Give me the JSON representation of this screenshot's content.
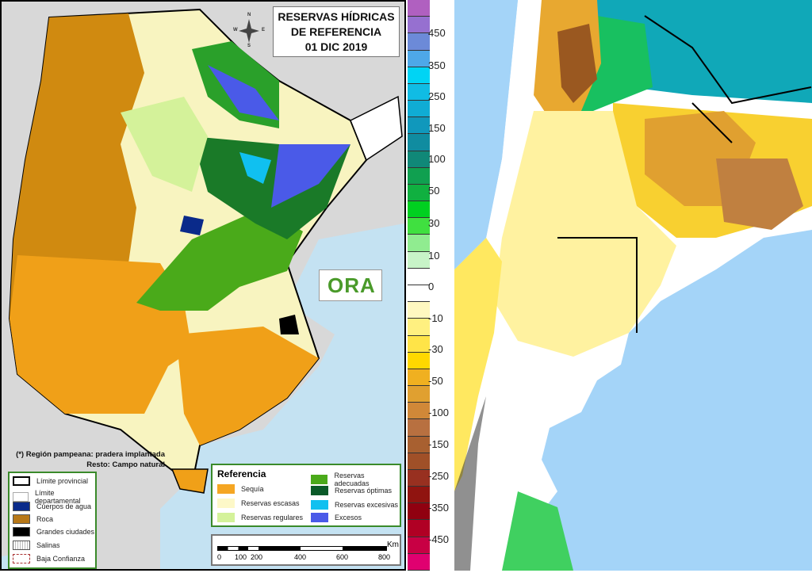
{
  "title": {
    "line1": "RESERVAS HÍDRICAS",
    "line2": "DE REFERENCIA",
    "line3": "01 DIC 2019"
  },
  "compass": {
    "n": "N",
    "s": "S",
    "e": "E",
    "w": "W"
  },
  "logo": {
    "text": "ORA"
  },
  "note": {
    "line1": "(*) Región pampeana: pradera implantada",
    "line2": "Resto: Campo natural"
  },
  "legend_left": {
    "items": [
      {
        "label": "Límite provincial",
        "color": "#ffffff"
      },
      {
        "label": "Límite departamental",
        "color": "#ffffff"
      },
      {
        "label": "Cuerpos de agua",
        "color": "#0a2a8a"
      },
      {
        "label": "Roca",
        "color": "#b87818"
      },
      {
        "label": "Grandes ciudades",
        "color": "#000000"
      },
      {
        "label": "Salinas",
        "color": "#f0f0f0"
      },
      {
        "label": "Baja Confianza",
        "color": "#ffffff"
      }
    ]
  },
  "legend_ref": {
    "title": "Referencia",
    "items": [
      {
        "label": "Sequía",
        "color": "#f5a623"
      },
      {
        "label": "Reservas escasas",
        "color": "#fdf8c8"
      },
      {
        "label": "Reservas regulares",
        "color": "#d4f29a"
      },
      {
        "label": "Reservas adecuadas",
        "color": "#4aaa1a"
      },
      {
        "label": "Reservas óptimas",
        "color": "#0a5a28"
      },
      {
        "label": "Reservas excesivas",
        "color": "#10c0f0"
      },
      {
        "label": "Excesos",
        "color": "#4a5ae8"
      }
    ]
  },
  "scale": {
    "unit": "Km",
    "ticks": [
      "0",
      "100",
      "200",
      "400",
      "600",
      "800"
    ]
  },
  "colorbar": {
    "labels": [
      "450",
      "350",
      "250",
      "150",
      "100",
      "50",
      "30",
      "10",
      "0",
      "-10",
      "-30",
      "-50",
      "-100",
      "-150",
      "-250",
      "-350",
      "-450"
    ],
    "colors": [
      "#b060c0",
      "#9670d0",
      "#6c8ad8",
      "#4ea8e8",
      "#00d4f4",
      "#10bce4",
      "#10acd4",
      "#1098bc",
      "#108ca0",
      "#108878",
      "#10a050",
      "#10b040",
      "#00d020",
      "#40e040",
      "#90ec90",
      "#c8f4c8",
      "#ffffff",
      "#ffffff",
      "#fff8c0",
      "#fff080",
      "#ffe448",
      "#ffd800",
      "#f0b020",
      "#e0a030",
      "#d08838",
      "#b87040",
      "#a86030",
      "#a05028",
      "#983020",
      "#901410",
      "#900010",
      "#b00024",
      "#c80044",
      "#e00070"
    ]
  }
}
